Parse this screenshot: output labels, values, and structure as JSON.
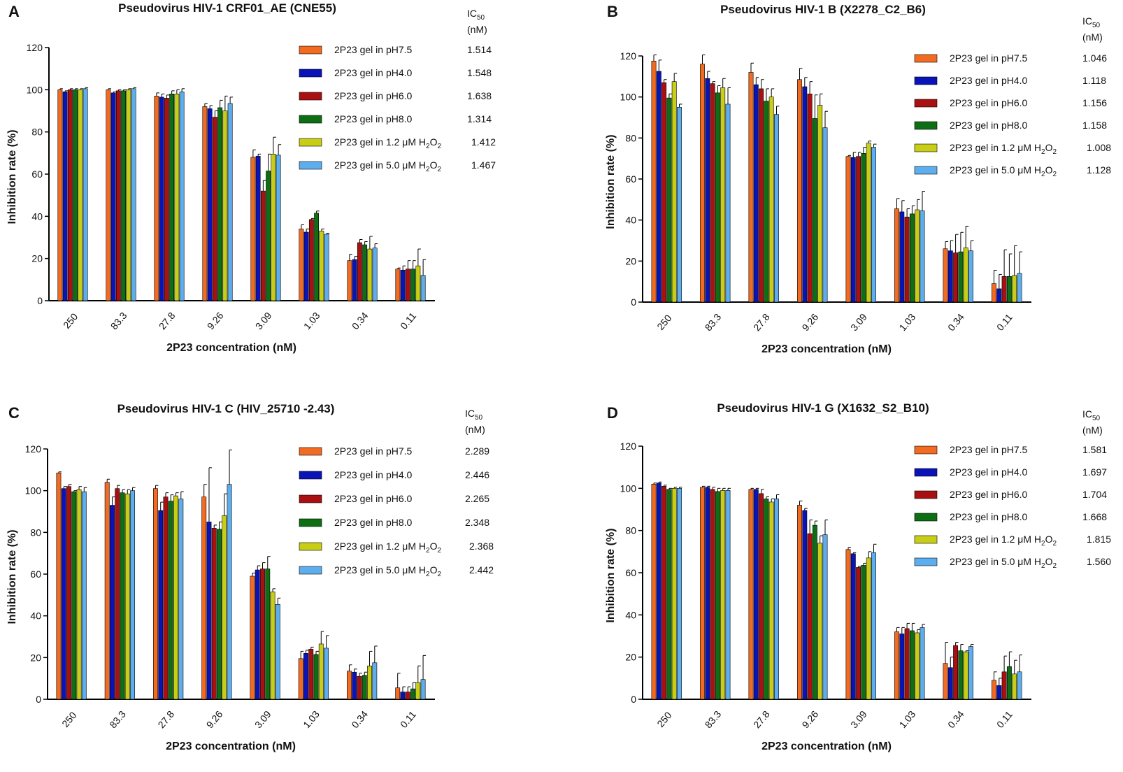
{
  "colors": {
    "series": [
      "#f26b22",
      "#0a13b8",
      "#a81012",
      "#0d6e13",
      "#c8cd16",
      "#5eaeee"
    ],
    "axis": "#000000"
  },
  "chart_data": [
    {
      "panel": "A",
      "type": "bar",
      "title": "Pseudovirus HIV-1 CRF01_AE (CNE55)",
      "xlabel": "2P23 concentration (nM)",
      "ylabel": "Inhibition rate (%)",
      "ylim": [
        0,
        120
      ],
      "yticks": [
        0,
        20,
        40,
        60,
        80,
        100,
        120
      ],
      "ic50_header_main": "IC",
      "ic50_header_sub": "50",
      "ic50_unit": "(nM)",
      "categories": [
        "250",
        "83.3",
        "27.8",
        "9.26",
        "3.09",
        "1.03",
        "0.34",
        "0.11"
      ],
      "series": [
        {
          "name": "2P23 gel in pH7.5",
          "name_main": "2P23 gel in pH7.5",
          "ic50": "1.514",
          "values": [
            100,
            100,
            97,
            92,
            68,
            34,
            19,
            15
          ],
          "errors": [
            0.5,
            0.5,
            1.5,
            1.5,
            3.5,
            2,
            3,
            0.5
          ]
        },
        {
          "name": "2P23 gel in pH4.0",
          "name_main": "2P23 gel in pH4.0",
          "ic50": "1.548",
          "values": [
            99,
            98.5,
            96.5,
            91,
            68.5,
            32.5,
            19.5,
            14.5
          ],
          "errors": [
            0.5,
            0.5,
            1.5,
            1.5,
            1,
            1.5,
            1.5,
            2
          ]
        },
        {
          "name": "2P23 gel in pH6.0",
          "name_main": "2P23 gel in pH6.0",
          "ic50": "1.638",
          "values": [
            100,
            99.5,
            96,
            87,
            52,
            38.5,
            27.5,
            15
          ],
          "errors": [
            0.5,
            0.5,
            1.5,
            3,
            5,
            0.5,
            1.5,
            4
          ]
        },
        {
          "name": "2P23 gel in pH8.0",
          "name_main": "2P23 gel in pH8.0",
          "ic50": "1.314",
          "values": [
            100,
            99.5,
            98,
            91.5,
            61.5,
            41.5,
            26.5,
            15
          ],
          "errors": [
            0.5,
            0.5,
            1.5,
            3.5,
            8,
            1,
            1.5,
            4
          ]
        },
        {
          "name": "2P23 gel in 1.2 μM H2O2",
          "name_main": "2P23 gel in 1.2 μM H",
          "name_mid": "O",
          "ic50": "1.412",
          "values": [
            100,
            100,
            98,
            90,
            69.5,
            33,
            24.5,
            16.5
          ],
          "errors": [
            0.5,
            0.5,
            2,
            7,
            8,
            1,
            6,
            8
          ]
        },
        {
          "name": "2P23 gel in 5.0 μM H2O2",
          "name_main": "2P23 gel in 5.0 μM H",
          "name_mid": "O",
          "ic50": "1.467",
          "values": [
            100.5,
            100.5,
            99,
            93.5,
            69,
            31.5,
            25,
            12
          ],
          "errors": [
            0.5,
            0.5,
            1.5,
            3,
            5,
            0.5,
            2,
            7.5
          ]
        }
      ]
    },
    {
      "panel": "B",
      "type": "bar",
      "title": "Pseudovirus HIV-1 B (X2278_C2_B6)",
      "xlabel": "2P23 concentration (nM)",
      "ylabel": "Inhibition rate (%)",
      "ylim": [
        0,
        120
      ],
      "yticks": [
        0,
        20,
        40,
        60,
        80,
        100,
        120
      ],
      "ic50_header_main": "IC",
      "ic50_header_sub": "50",
      "ic50_unit": "(nM)",
      "categories": [
        "250",
        "83.3",
        "27.8",
        "9.26",
        "3.09",
        "1.03",
        "0.34",
        "0.11"
      ],
      "series": [
        {
          "name": "2P23 gel in pH7.5",
          "name_main": "2P23 gel in pH7.5",
          "ic50": "1.046",
          "values": [
            117.5,
            116,
            112,
            108.5,
            71,
            45.5,
            26,
            9
          ],
          "errors": [
            3,
            4.5,
            4.5,
            5.5,
            0.5,
            5,
            3.5,
            6.5
          ]
        },
        {
          "name": "2P23 gel in pH4.0",
          "name_main": "2P23 gel in pH4.0",
          "ic50": "1.118",
          "values": [
            112.5,
            109,
            106,
            105,
            70.5,
            44,
            25,
            6.5
          ],
          "errors": [
            5.5,
            3.5,
            3.5,
            4.5,
            2.5,
            5.5,
            5,
            7
          ]
        },
        {
          "name": "2P23 gel in pH6.0",
          "name_main": "2P23 gel in pH6.0",
          "ic50": "1.156",
          "values": [
            107,
            106.5,
            104,
            101.5,
            71,
            41.5,
            24,
            12.5
          ],
          "errors": [
            1.5,
            1,
            4.5,
            6,
            2,
            4,
            9,
            13
          ]
        },
        {
          "name": "2P23 gel in pH8.0",
          "name_main": "2P23 gel in pH8.0",
          "ic50": "1.158",
          "values": [
            99.5,
            102,
            98,
            89.5,
            72.5,
            43,
            24.5,
            12.5
          ],
          "errors": [
            2,
            3.5,
            6,
            11.5,
            3,
            4,
            9.5,
            11
          ]
        },
        {
          "name": "2P23 gel in 1.2 μM H2O2",
          "name_main": "2P23 gel in 1.2 μM H",
          "name_mid": "O",
          "ic50": "1.008",
          "values": [
            107.5,
            104.5,
            100,
            96,
            77.5,
            45,
            26.5,
            13
          ],
          "errors": [
            4,
            4.5,
            4,
            5.5,
            1,
            5,
            10.5,
            14.5
          ]
        },
        {
          "name": "2P23 gel in 5.0 μM H2O2",
          "name_main": "2P23 gel in 5.0 μM H",
          "name_mid": "O",
          "ic50": "1.128",
          "values": [
            95,
            96.5,
            91.5,
            85,
            75.5,
            44.5,
            25,
            14
          ],
          "errors": [
            1.5,
            8,
            4,
            8,
            1.5,
            9.5,
            5,
            10.5
          ]
        }
      ]
    },
    {
      "panel": "C",
      "type": "bar",
      "title": "Pseudovirus HIV-1 C (HIV_25710 -2.43)",
      "xlabel": "2P23 concentration (nM)",
      "ylabel": "Inhibition rate (%)",
      "ylim": [
        0,
        120
      ],
      "yticks": [
        0,
        20,
        40,
        60,
        80,
        100,
        120
      ],
      "ic50_header_main": "IC",
      "ic50_header_sub": "50",
      "ic50_unit": "(nM)",
      "categories": [
        "250",
        "83.3",
        "27.8",
        "9.26",
        "3.09",
        "1.03",
        "0.34",
        "0.11"
      ],
      "series": [
        {
          "name": "2P23 gel in pH7.5",
          "name_main": "2P23 gel in pH7.5",
          "ic50": "2.289",
          "values": [
            108.5,
            104,
            101,
            97,
            59,
            19.5,
            13.5,
            5.5
          ],
          "errors": [
            0.5,
            1.5,
            1.5,
            6,
            1.5,
            3.5,
            3,
            7
          ]
        },
        {
          "name": "2P23 gel in pH4.0",
          "name_main": "2P23 gel in pH4.0",
          "ic50": "2.446",
          "values": [
            101,
            93,
            90.5,
            85,
            62,
            22,
            13,
            3.5
          ],
          "errors": [
            1,
            4,
            4,
            26,
            2,
            1.5,
            1.5,
            2.5
          ]
        },
        {
          "name": "2P23 gel in pH6.0",
          "name_main": "2P23 gel in pH6.0",
          "ic50": "2.265",
          "values": [
            102,
            101,
            97,
            82,
            62.5,
            24,
            11,
            3.5
          ],
          "errors": [
            1,
            1.5,
            2,
            1.5,
            3,
            1,
            1.5,
            2.5
          ]
        },
        {
          "name": "2P23 gel in pH8.0",
          "name_main": "2P23 gel in pH8.0",
          "ic50": "2.348",
          "values": [
            99.5,
            99,
            95,
            81.5,
            62.5,
            21.5,
            11.5,
            5
          ],
          "errors": [
            0.5,
            1.5,
            3,
            3.5,
            6,
            1.5,
            1.5,
            3
          ]
        },
        {
          "name": "2P23 gel in 1.2 μM H2O2",
          "name_main": "2P23 gel in 1.2 μM H",
          "name_mid": "O",
          "ic50": "2.368",
          "values": [
            100.5,
            98.5,
            97.5,
            88,
            51.5,
            26.5,
            16,
            8
          ],
          "errors": [
            1.5,
            2,
            1.5,
            10.5,
            1.5,
            6,
            7,
            8
          ]
        },
        {
          "name": "2P23 gel in 5.0 μM H2O2",
          "name_main": "2P23 gel in 5.0 μM H",
          "name_mid": "O",
          "ic50": "2.442",
          "values": [
            99.5,
            100,
            96,
            103,
            45.5,
            24.5,
            17.5,
            9.5
          ],
          "errors": [
            2,
            1.5,
            3.5,
            16.5,
            3,
            6,
            8,
            11.5
          ]
        }
      ]
    },
    {
      "panel": "D",
      "type": "bar",
      "title": "Pseudovirus HIV-1 G (X1632_S2_B10)",
      "xlabel": "2P23 concentration (nM)",
      "ylabel": "Inhibition rate (%)",
      "ylim": [
        0,
        120
      ],
      "yticks": [
        0,
        20,
        40,
        60,
        80,
        100,
        120
      ],
      "ic50_header_main": "IC",
      "ic50_header_sub": "50",
      "ic50_unit": "(nM)",
      "categories": [
        "250",
        "83.3",
        "27.8",
        "9.26",
        "3.09",
        "1.03",
        "0.34",
        "0.11"
      ],
      "series": [
        {
          "name": "2P23 gel in pH7.5",
          "name_main": "2P23 gel in pH7.5",
          "ic50": "1.581",
          "values": [
            102,
            100.5,
            99.5,
            92,
            71,
            32,
            17,
            9
          ],
          "errors": [
            0.5,
            0.5,
            0.5,
            2,
            1,
            2,
            10,
            4
          ]
        },
        {
          "name": "2P23 gel in pH4.0",
          "name_main": "2P23 gel in pH4.0",
          "ic50": "1.697",
          "values": [
            102.5,
            100.5,
            99.5,
            89.5,
            69,
            31,
            15,
            6.5
          ],
          "errors": [
            0.5,
            0.5,
            0.5,
            1,
            0.5,
            3,
            5,
            3.5
          ]
        },
        {
          "name": "2P23 gel in pH6.0",
          "name_main": "2P23 gel in pH6.0",
          "ic50": "1.704",
          "values": [
            101,
            99.5,
            97.5,
            78.5,
            62.5,
            33.5,
            25.5,
            13
          ],
          "errors": [
            0.5,
            1,
            2,
            6.5,
            0.5,
            2.5,
            1.5,
            7.5
          ]
        },
        {
          "name": "2P23 gel in pH8.0",
          "name_main": "2P23 gel in pH8.0",
          "ic50": "1.668",
          "values": [
            99.5,
            98.5,
            95,
            82.5,
            63.5,
            32.5,
            23,
            15.5
          ],
          "errors": [
            0.5,
            1.5,
            1,
            2,
            1,
            3.5,
            3,
            7
          ]
        },
        {
          "name": "2P23 gel in 1.2 μM H2O2",
          "name_main": "2P23 gel in 1.2 μM H",
          "name_mid": "O",
          "ic50": "1.815",
          "values": [
            100,
            99,
            93.5,
            74,
            67,
            31.5,
            22.5,
            12
          ],
          "errors": [
            0.5,
            1,
            1.5,
            3.5,
            3,
            1.5,
            0.5,
            6.5
          ]
        },
        {
          "name": "2P23 gel in 5.0 μM H2O2",
          "name_main": "2P23 gel in 5.0 μM H",
          "name_mid": "O",
          "ic50": "1.560",
          "values": [
            100,
            99,
            95,
            78,
            69.5,
            34,
            25,
            13
          ],
          "errors": [
            0.5,
            1,
            2,
            7,
            4,
            1.5,
            1,
            8
          ]
        }
      ]
    }
  ]
}
